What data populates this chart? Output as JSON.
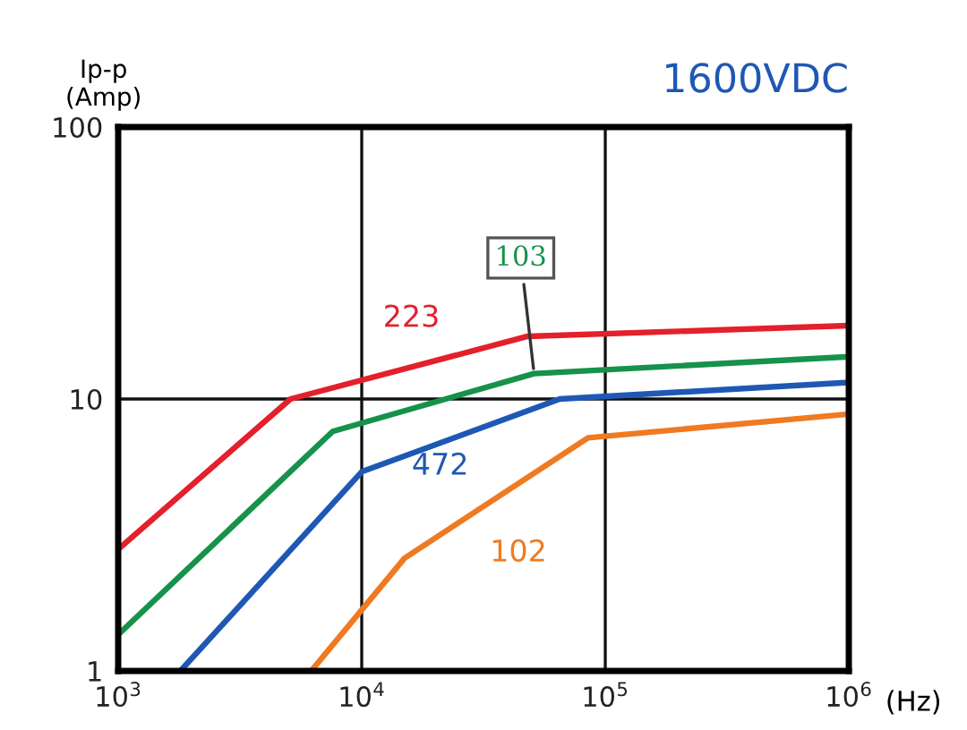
{
  "chart_data": {
    "type": "line",
    "title": "1600VDC",
    "xlabel": "(Hz)",
    "ylabel": "Ip-p\n(Amp)",
    "log": "xy",
    "grid": true,
    "legend": false,
    "marker": "none",
    "line_style": "solid",
    "xlim": [
      1000,
      1000000
    ],
    "ylim": [
      1,
      100
    ],
    "xticks": [
      {
        "value": 1000,
        "label": "10$^{3}$"
      },
      {
        "value": 10000,
        "label": "10$^{4}$"
      },
      {
        "value": 100000,
        "label": "10$^{5}$"
      },
      {
        "value": 1000000,
        "label": "10$^{6}$"
      }
    ],
    "yticks": [
      1,
      10,
      100
    ],
    "series": [
      {
        "name": "223",
        "color": "#e3202c",
        "x": [
          1000,
          5100,
          48000,
          1000000
        ],
        "values": [
          2.8,
          10,
          17,
          18.6
        ]
      },
      {
        "name": "103",
        "color": "#16924a",
        "x": [
          1000,
          7600,
          51000,
          1000000
        ],
        "values": [
          1.36,
          7.6,
          12.4,
          14.3
        ]
      },
      {
        "name": "472",
        "color": "#1f58b4",
        "x": [
          1800,
          10000,
          65000,
          1000000
        ],
        "values": [
          1,
          5.4,
          10,
          11.5
        ]
      },
      {
        "name": "102",
        "color": "#ef7a22",
        "x": [
          6200,
          15000,
          85000,
          1000000
        ],
        "values": [
          1,
          2.6,
          7.2,
          8.8
        ]
      }
    ]
  }
}
